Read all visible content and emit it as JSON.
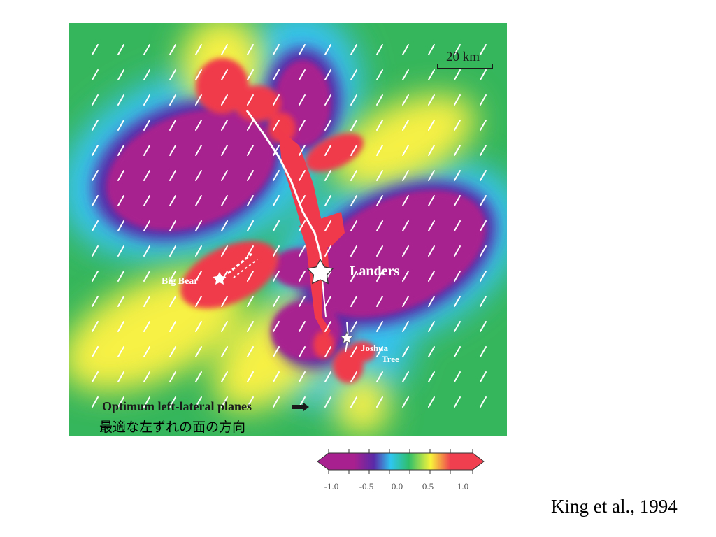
{
  "map": {
    "scale_label": "20 km",
    "fault_labels": {
      "landers": "Landers",
      "big_bear": "Big Bear",
      "joshua_line1": "Joshua",
      "joshua_line2": "Tree"
    },
    "legend_label": "Optimum left-lateral planes",
    "legend_label_ja": "最適な左ずれの面の方向"
  },
  "colorbar": {
    "ticks": [
      "-1.0",
      "-0.5",
      "0.0",
      "0.5",
      "1.0"
    ],
    "colors": [
      "#a8208f",
      "#5a2aa8",
      "#2fc6f0",
      "#2fbf6a",
      "#f7f43a",
      "#f04050"
    ]
  },
  "citation": "King et al., 1994"
}
